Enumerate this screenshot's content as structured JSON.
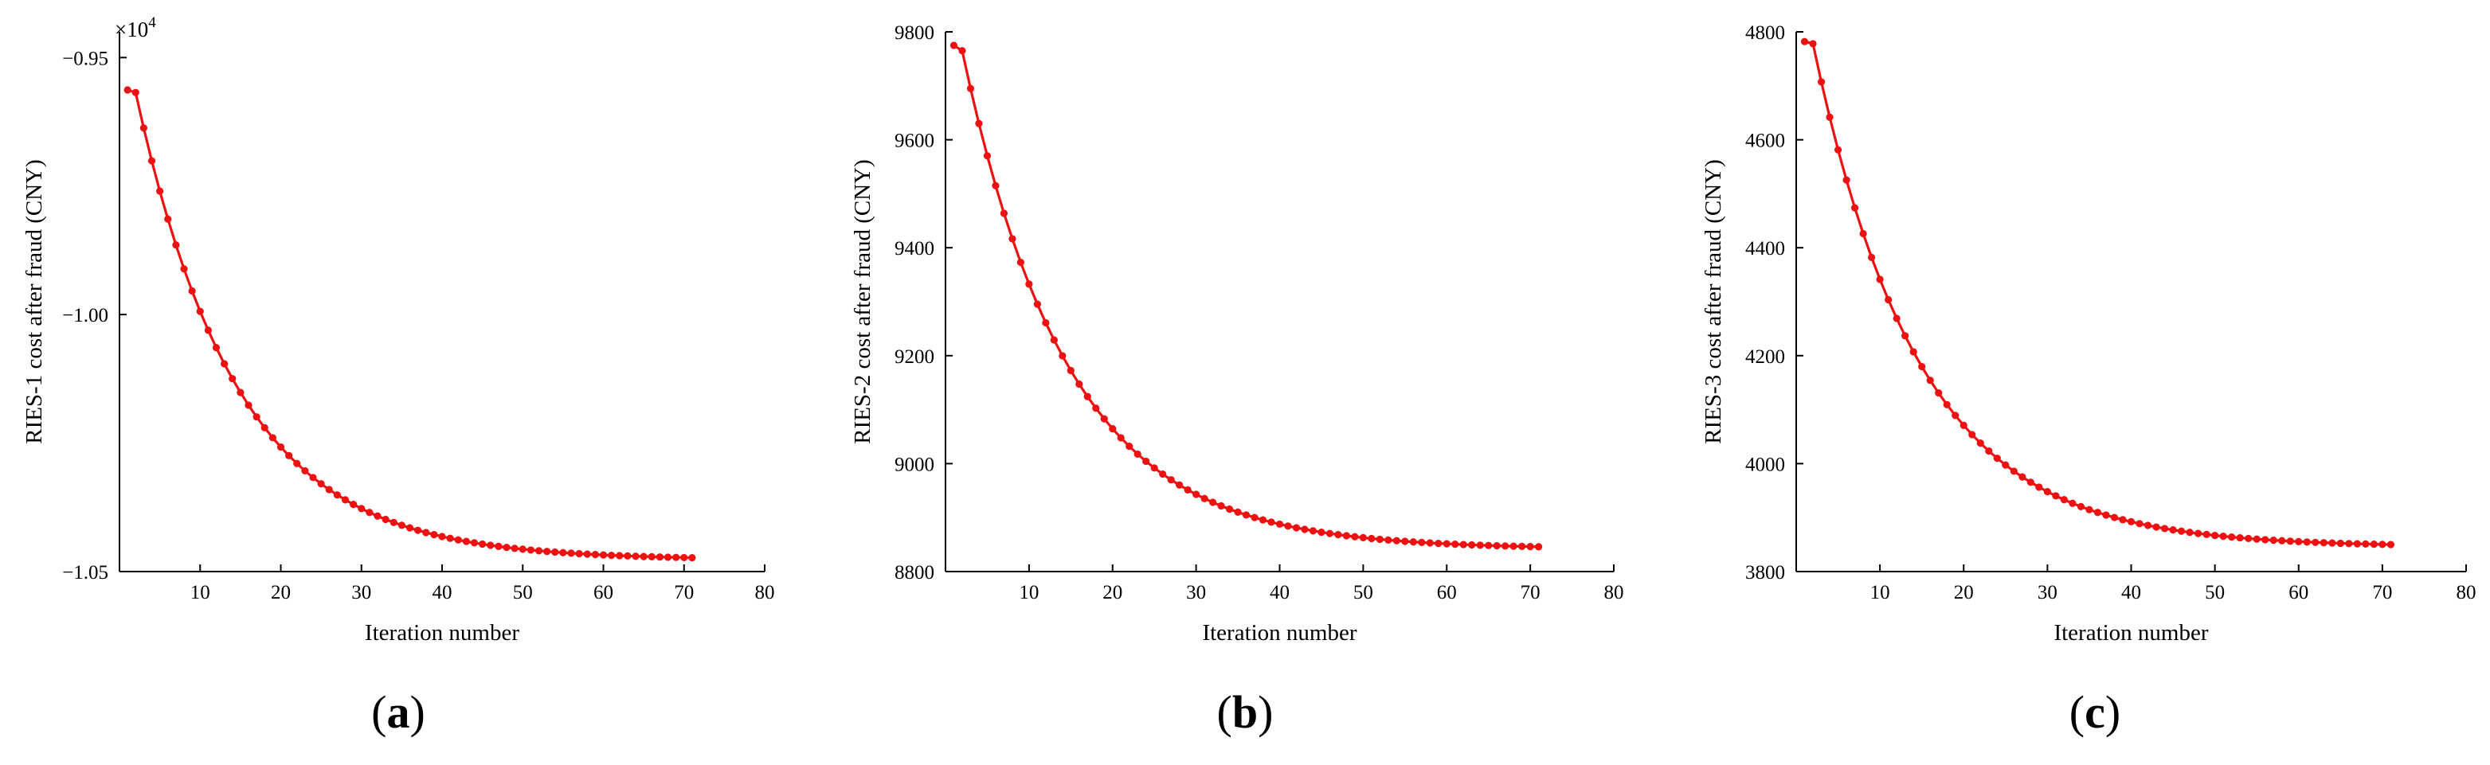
{
  "chart_data": [
    {
      "type": "line",
      "panel_label": "(a)",
      "panel_letter": "a",
      "xlabel": "Iteration number",
      "ylabel": "RIES-1 cost after fraud (CNY)",
      "y_multiplier_label": "×10",
      "y_multiplier_exp": "4",
      "xlim": [
        0,
        80
      ],
      "ylim": [
        -1.05,
        -0.945
      ],
      "xticks": [
        10,
        20,
        30,
        40,
        50,
        60,
        70,
        80
      ],
      "yticks": [
        -1.05,
        -1.0,
        -0.95
      ],
      "ytick_labels": [
        "−1.05",
        "−1.00",
        "−0.95"
      ],
      "series": [
        {
          "color": "#ee1111",
          "points": {
            "x_start": 1,
            "x_end": 71,
            "start": -0.9563,
            "second": -0.9568,
            "end": -1.0477,
            "decay": 0.079
          }
        }
      ]
    },
    {
      "type": "line",
      "panel_label": "(b)",
      "panel_letter": "b",
      "xlabel": "Iteration number",
      "ylabel": "RIES-2 cost after fraud (CNY)",
      "xlim": [
        0,
        80
      ],
      "ylim": [
        8800,
        9800
      ],
      "xticks": [
        10,
        20,
        30,
        40,
        50,
        60,
        70,
        80
      ],
      "yticks": [
        8800,
        9000,
        9200,
        9400,
        9600,
        9800
      ],
      "ytick_labels": [
        "8800",
        "9000",
        "9200",
        "9400",
        "9600",
        "9800"
      ],
      "series": [
        {
          "color": "#ee1111",
          "points": {
            "x_start": 1,
            "x_end": 71,
            "start": 9775,
            "second": 9765,
            "end": 8842,
            "decay": 0.079
          }
        }
      ]
    },
    {
      "type": "line",
      "panel_label": "(c)",
      "panel_letter": "c",
      "xlabel": "Iteration number",
      "ylabel": "RIES-3 cost after fraud (CNY)",
      "xlim": [
        0,
        80
      ],
      "ylim": [
        3800,
        4800
      ],
      "xticks": [
        10,
        20,
        30,
        40,
        50,
        60,
        70,
        80
      ],
      "yticks": [
        3800,
        4000,
        4200,
        4400,
        4600,
        4800
      ],
      "ytick_labels": [
        "3800",
        "4000",
        "4200",
        "4400",
        "4600",
        "4800"
      ],
      "series": [
        {
          "color": "#ee1111",
          "points": {
            "x_start": 1,
            "x_end": 71,
            "start": 4782,
            "second": 4778,
            "end": 3846,
            "decay": 0.079
          }
        }
      ]
    }
  ]
}
